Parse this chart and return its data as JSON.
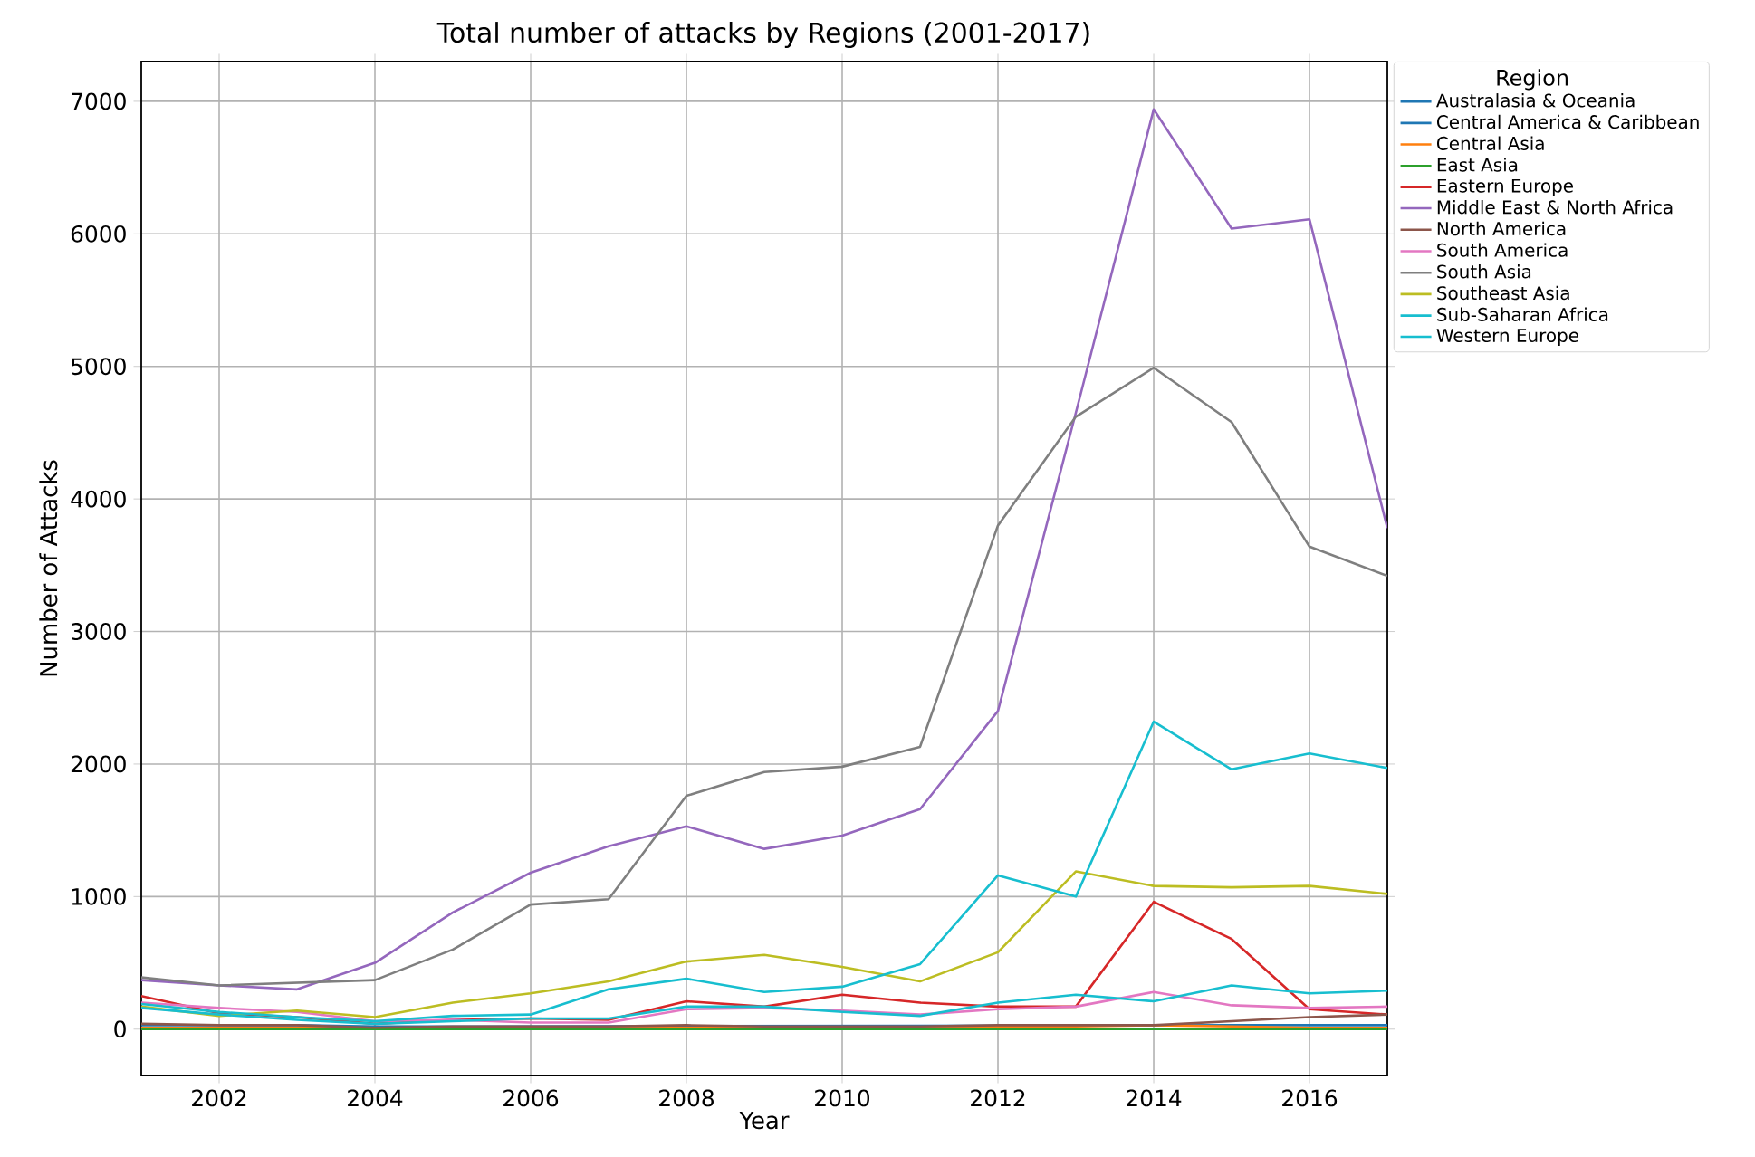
{
  "chart_data": {
    "type": "line",
    "title": "Total number of attacks by Regions (2001-2017)",
    "xlabel": "Year",
    "ylabel": "Number of Attacks",
    "legend_title": "Region",
    "x": [
      2001,
      2002,
      2003,
      2004,
      2005,
      2006,
      2007,
      2008,
      2009,
      2010,
      2011,
      2012,
      2013,
      2014,
      2015,
      2016,
      2017
    ],
    "xlim": [
      2001,
      2017
    ],
    "ylim": [
      -350,
      7300
    ],
    "xticks": [
      2002,
      2004,
      2006,
      2008,
      2010,
      2012,
      2014,
      2016
    ],
    "yticks": [
      0,
      1000,
      2000,
      3000,
      4000,
      5000,
      6000,
      7000
    ],
    "grid": true,
    "legend": "right",
    "line_style": "solid",
    "series": [
      {
        "name": "Australasia & Oceania",
        "color": "#1f77b4",
        "values": [
          30,
          30,
          30,
          20,
          20,
          null,
          null,
          null,
          null,
          null,
          null,
          null,
          null,
          null,
          30,
          30,
          30
        ]
      },
      {
        "name": "Central America & Caribbean",
        "color": "#1f77b4",
        "values": [
          null,
          null,
          null,
          null,
          null,
          null,
          null,
          null,
          null,
          null,
          null,
          null,
          null,
          null,
          null,
          null,
          null
        ]
      },
      {
        "name": "Central Asia",
        "color": "#ff7f0e",
        "values": [
          10,
          10,
          10,
          10,
          10,
          10,
          10,
          10,
          10,
          10,
          10,
          20,
          20,
          30,
          20,
          10,
          10
        ]
      },
      {
        "name": "East Asia",
        "color": "#2ca02c",
        "values": [
          0,
          0,
          0,
          0,
          0,
          0,
          0,
          0,
          0,
          0,
          0,
          0,
          0,
          0,
          0,
          0,
          0
        ]
      },
      {
        "name": "Eastern Europe",
        "color": "#d62728",
        "values": [
          250,
          120,
          90,
          40,
          70,
          80,
          70,
          210,
          170,
          260,
          200,
          170,
          170,
          960,
          680,
          150,
          110
        ]
      },
      {
        "name": "Middle East & North Africa",
        "color": "#9467bd",
        "values": [
          370,
          330,
          300,
          500,
          880,
          1180,
          1380,
          1530,
          1360,
          1460,
          1660,
          2400,
          4650,
          6940,
          6040,
          6110,
          3780
        ]
      },
      {
        "name": "North America",
        "color": "#8c564b",
        "values": [
          40,
          30,
          30,
          10,
          20,
          20,
          20,
          30,
          20,
          20,
          20,
          30,
          30,
          30,
          60,
          90,
          110
        ]
      },
      {
        "name": "South America",
        "color": "#e377c2",
        "values": [
          200,
          160,
          130,
          60,
          70,
          50,
          50,
          150,
          160,
          140,
          110,
          150,
          170,
          280,
          180,
          160,
          170
        ]
      },
      {
        "name": "South Asia",
        "color": "#7f7f7f",
        "values": [
          390,
          330,
          350,
          370,
          600,
          940,
          980,
          1760,
          1940,
          1980,
          2130,
          3800,
          4620,
          4990,
          4580,
          3640,
          3420
        ]
      },
      {
        "name": "Southeast Asia",
        "color": "#bcbd22",
        "values": [
          170,
          100,
          140,
          90,
          200,
          270,
          360,
          510,
          560,
          470,
          360,
          580,
          1190,
          1080,
          1070,
          1080,
          1020
        ]
      },
      {
        "name": "Sub-Saharan Africa",
        "color": "#17becf",
        "values": [
          190,
          130,
          90,
          60,
          100,
          110,
          300,
          380,
          280,
          320,
          490,
          1160,
          1000,
          2320,
          1960,
          2080,
          1970
        ]
      },
      {
        "name": "Western Europe",
        "color": "#17becf",
        "values": [
          160,
          110,
          70,
          40,
          60,
          80,
          80,
          170,
          170,
          130,
          100,
          200,
          260,
          210,
          330,
          270,
          290
        ]
      }
    ]
  }
}
